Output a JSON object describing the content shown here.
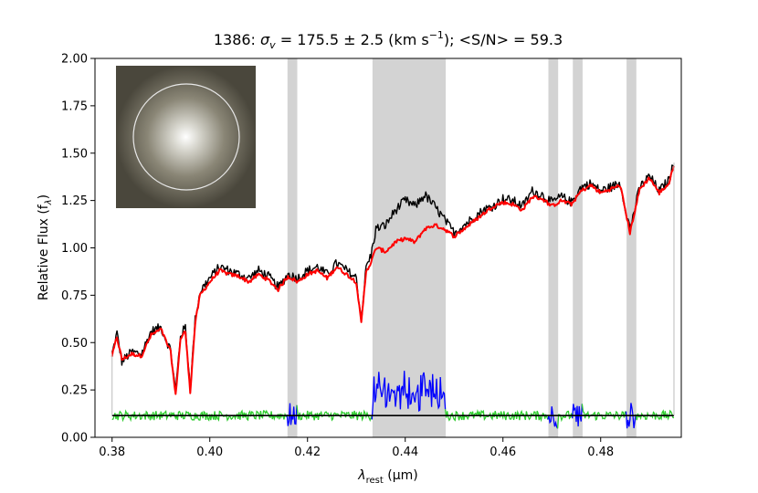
{
  "chart_data": {
    "type": "line",
    "title": {
      "prefix": "1386: ",
      "sigma_symbol": "σ",
      "sigma_sub": "v",
      "middle": " = 175.5 ± 2.5 (km s",
      "exp": "−1",
      "suffix": "); <S/N> = 59.3"
    },
    "xlabel": {
      "main": "λ",
      "sub": "rest",
      "unit": " (μm)"
    },
    "ylabel": {
      "main": "Relative Flux (f",
      "sub": "λ",
      "end": ")"
    },
    "xlim": [
      0.3765,
      0.4965
    ],
    "ylim": [
      0.0,
      2.0
    ],
    "xticks": [
      0.38,
      0.4,
      0.42,
      0.44,
      0.46,
      0.48
    ],
    "xtick_labels": [
      "0.38",
      "0.40",
      "0.42",
      "0.44",
      "0.46",
      "0.48"
    ],
    "yticks": [
      0.0,
      0.25,
      0.5,
      0.75,
      1.0,
      1.25,
      1.5,
      1.75,
      2.0
    ],
    "ytick_labels": [
      "0.00",
      "0.25",
      "0.50",
      "0.75",
      "1.00",
      "1.25",
      "1.50",
      "1.75",
      "2.00"
    ],
    "masked_regions": [
      [
        0.4159,
        0.4179
      ],
      [
        0.4333,
        0.4483
      ],
      [
        0.4693,
        0.4713
      ],
      [
        0.4743,
        0.4763
      ],
      [
        0.4853,
        0.4873
      ]
    ],
    "residual_offset": 0.115,
    "spectrum_range": [
      0.38,
      0.495
    ],
    "series": [
      {
        "role": "observed",
        "color": "#000000",
        "x": [
          0.38,
          0.381,
          0.382,
          0.384,
          0.386,
          0.388,
          0.39,
          0.392,
          0.393,
          0.394,
          0.395,
          0.396,
          0.397,
          0.398,
          0.4,
          0.402,
          0.404,
          0.406,
          0.408,
          0.41,
          0.412,
          0.414,
          0.416,
          0.418,
          0.42,
          0.422,
          0.424,
          0.426,
          0.428,
          0.43,
          0.431,
          0.432,
          0.433,
          0.434,
          0.436,
          0.438,
          0.44,
          0.442,
          0.444,
          0.446,
          0.448,
          0.45,
          0.452,
          0.454,
          0.456,
          0.458,
          0.46,
          0.462,
          0.464,
          0.466,
          0.468,
          0.47,
          0.472,
          0.474,
          0.476,
          0.478,
          0.48,
          0.482,
          0.484,
          0.486,
          0.488,
          0.49,
          0.492,
          0.494,
          0.495
        ],
        "y": [
          0.44,
          0.55,
          0.4,
          0.45,
          0.44,
          0.56,
          0.58,
          0.46,
          0.24,
          0.54,
          0.58,
          0.26,
          0.62,
          0.77,
          0.84,
          0.9,
          0.88,
          0.86,
          0.84,
          0.88,
          0.85,
          0.79,
          0.86,
          0.84,
          0.88,
          0.9,
          0.86,
          0.92,
          0.88,
          0.84,
          0.62,
          0.9,
          0.96,
          1.1,
          1.12,
          1.2,
          1.25,
          1.22,
          1.28,
          1.22,
          1.15,
          1.08,
          1.12,
          1.16,
          1.2,
          1.22,
          1.26,
          1.25,
          1.22,
          1.3,
          1.28,
          1.24,
          1.27,
          1.24,
          1.32,
          1.34,
          1.3,
          1.32,
          1.34,
          1.1,
          1.32,
          1.38,
          1.3,
          1.36,
          1.45
        ]
      },
      {
        "role": "model",
        "color": "#ff0000",
        "x": [
          0.38,
          0.381,
          0.382,
          0.384,
          0.386,
          0.388,
          0.39,
          0.392,
          0.393,
          0.394,
          0.395,
          0.396,
          0.397,
          0.398,
          0.4,
          0.402,
          0.404,
          0.406,
          0.408,
          0.41,
          0.412,
          0.414,
          0.416,
          0.418,
          0.42,
          0.422,
          0.424,
          0.426,
          0.428,
          0.43,
          0.431,
          0.432,
          0.433,
          0.434,
          0.436,
          0.438,
          0.44,
          0.442,
          0.444,
          0.446,
          0.448,
          0.45,
          0.452,
          0.454,
          0.456,
          0.458,
          0.46,
          0.462,
          0.464,
          0.466,
          0.468,
          0.47,
          0.472,
          0.474,
          0.476,
          0.478,
          0.48,
          0.482,
          0.484,
          0.486,
          0.488,
          0.49,
          0.492,
          0.494,
          0.495
        ],
        "y": [
          0.43,
          0.53,
          0.41,
          0.44,
          0.43,
          0.54,
          0.57,
          0.45,
          0.22,
          0.52,
          0.56,
          0.24,
          0.6,
          0.75,
          0.82,
          0.88,
          0.86,
          0.85,
          0.82,
          0.86,
          0.83,
          0.78,
          0.85,
          0.82,
          0.86,
          0.88,
          0.84,
          0.9,
          0.86,
          0.82,
          0.6,
          0.88,
          0.92,
          1.0,
          0.98,
          1.03,
          1.05,
          1.03,
          1.1,
          1.12,
          1.1,
          1.06,
          1.1,
          1.14,
          1.18,
          1.22,
          1.24,
          1.23,
          1.2,
          1.27,
          1.26,
          1.22,
          1.25,
          1.23,
          1.3,
          1.33,
          1.29,
          1.31,
          1.33,
          1.08,
          1.31,
          1.37,
          1.29,
          1.34,
          1.44
        ]
      }
    ]
  }
}
